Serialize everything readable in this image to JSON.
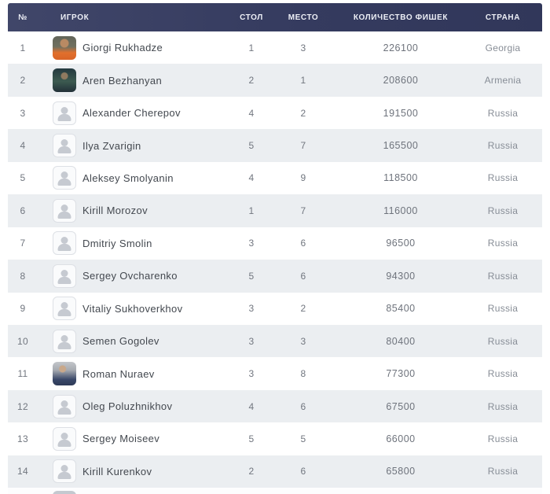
{
  "colors": {
    "header_bg": "#353b5f",
    "header_text": "#edeff6",
    "row_alt_bg": "#ebeef1",
    "row_bg": "#ffffff",
    "name_text": "#43484f",
    "muted_text": "#878d96"
  },
  "icons": {
    "avatar_placeholder": "person-icon"
  },
  "table": {
    "columns": [
      {
        "key": "num",
        "label": "№"
      },
      {
        "key": "player",
        "label": "ИГРОК"
      },
      {
        "key": "table_no",
        "label": "СТОЛ"
      },
      {
        "key": "place",
        "label": "МЕСТО"
      },
      {
        "key": "chips",
        "label": "КОЛИЧЕСТВО ФИШЕК"
      },
      {
        "key": "country",
        "label": "СТРАНА"
      }
    ],
    "rows": [
      {
        "num": "1",
        "player": "Giorgi Rukhadze",
        "avatar": "photo-orange",
        "table_no": "1",
        "place": "3",
        "chips": "226100",
        "country": "Georgia"
      },
      {
        "num": "2",
        "player": "Aren Bezhanyan",
        "avatar": "photo-teal",
        "table_no": "2",
        "place": "1",
        "chips": "208600",
        "country": "Armenia"
      },
      {
        "num": "3",
        "player": "Alexander Cherepov",
        "avatar": "placeholder",
        "table_no": "4",
        "place": "2",
        "chips": "191500",
        "country": "Russia"
      },
      {
        "num": "4",
        "player": "Ilya Zvarigin",
        "avatar": "placeholder",
        "table_no": "5",
        "place": "7",
        "chips": "165500",
        "country": "Russia"
      },
      {
        "num": "5",
        "player": "Aleksey Smolyanin",
        "avatar": "placeholder",
        "table_no": "4",
        "place": "9",
        "chips": "118500",
        "country": "Russia"
      },
      {
        "num": "6",
        "player": "Kirill Morozov",
        "avatar": "placeholder",
        "table_no": "1",
        "place": "7",
        "chips": "116000",
        "country": "Russia"
      },
      {
        "num": "7",
        "player": "Dmitriy Smolin",
        "avatar": "placeholder",
        "table_no": "3",
        "place": "6",
        "chips": "96500",
        "country": "Russia"
      },
      {
        "num": "8",
        "player": "Sergey Ovcharenko",
        "avatar": "placeholder",
        "table_no": "5",
        "place": "6",
        "chips": "94300",
        "country": "Russia"
      },
      {
        "num": "9",
        "player": "Vitaliy Sukhoverkhov",
        "avatar": "placeholder",
        "table_no": "3",
        "place": "2",
        "chips": "85400",
        "country": "Russia"
      },
      {
        "num": "10",
        "player": "Semen Gogolev",
        "avatar": "placeholder",
        "table_no": "3",
        "place": "3",
        "chips": "80400",
        "country": "Russia"
      },
      {
        "num": "11",
        "player": "Roman Nuraev",
        "avatar": "photo-navy",
        "table_no": "3",
        "place": "8",
        "chips": "77300",
        "country": "Russia"
      },
      {
        "num": "12",
        "player": "Oleg Poluzhnikhov",
        "avatar": "placeholder",
        "table_no": "4",
        "place": "6",
        "chips": "67500",
        "country": "Russia"
      },
      {
        "num": "13",
        "player": "Sergey Moiseev",
        "avatar": "placeholder",
        "table_no": "5",
        "place": "5",
        "chips": "66000",
        "country": "Russia"
      },
      {
        "num": "14",
        "player": "Kirill Kurenkov",
        "avatar": "placeholder",
        "table_no": "2",
        "place": "6",
        "chips": "65800",
        "country": "Russia"
      }
    ]
  }
}
